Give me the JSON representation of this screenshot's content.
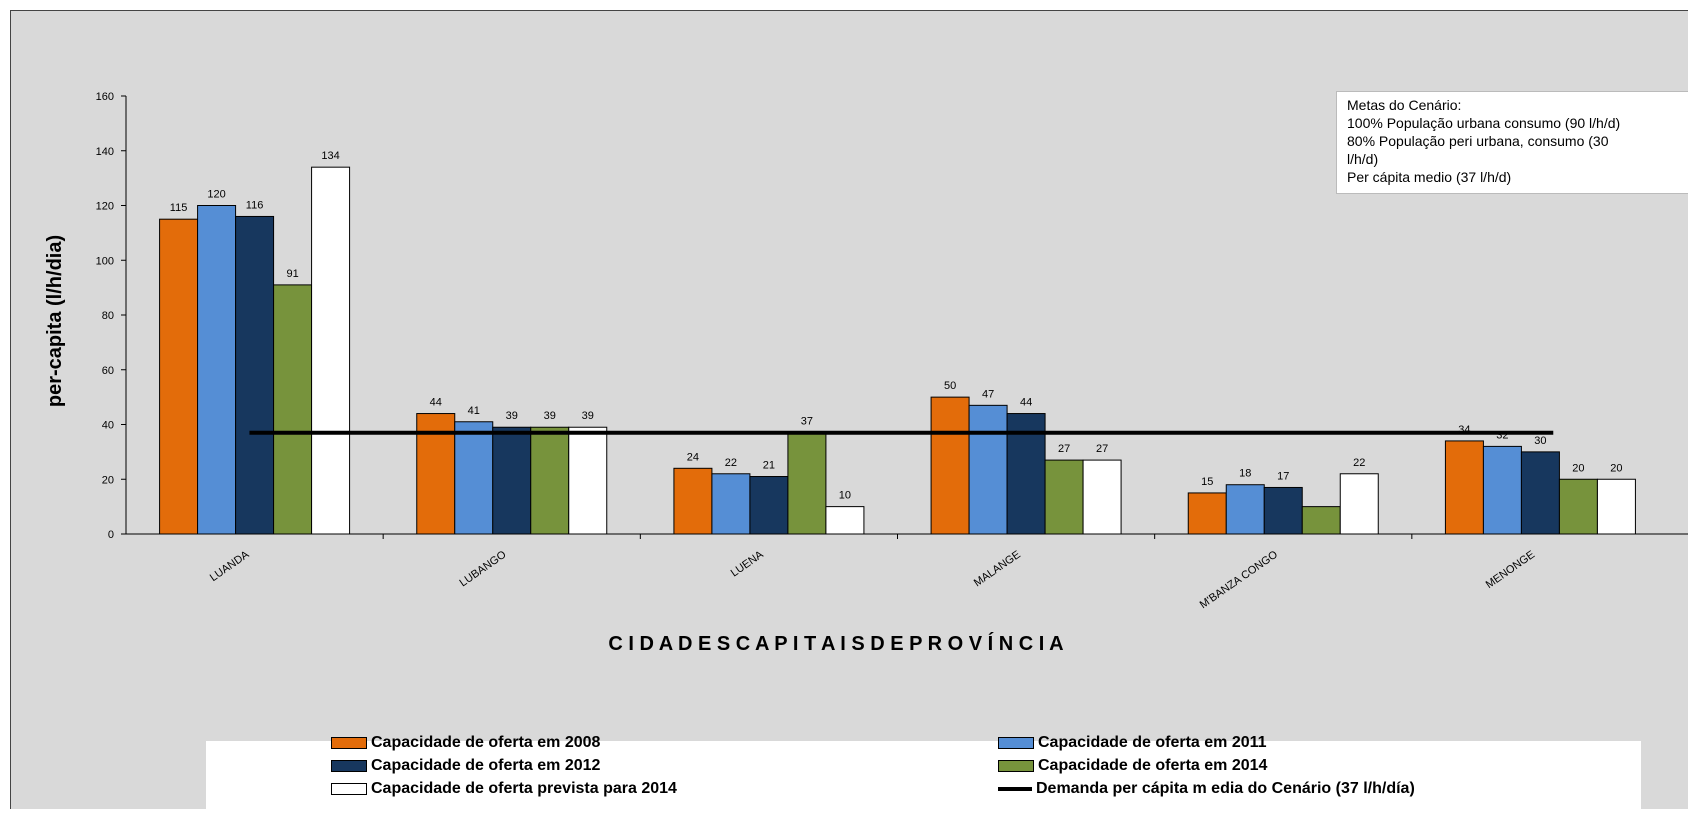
{
  "chart_data": {
    "type": "bar",
    "xlabel": "C I D A D E S   C A P I T A I S  D E  P R O V Í N C I A",
    "ylabel": "per-capita (l/h/dia)",
    "ylim": [
      0,
      160
    ],
    "yticks": [
      0,
      20,
      40,
      60,
      80,
      100,
      120,
      140,
      160
    ],
    "categories": [
      "LUANDA",
      "LUBANGO",
      "LUENA",
      "MALANGE",
      "M'BANZA CONGO",
      "MENONGE"
    ],
    "series": [
      {
        "name": "Capacidade de oferta em 2008",
        "color": "#e36c0a",
        "values": [
          115,
          44,
          24,
          50,
          15,
          34
        ]
      },
      {
        "name": "Capacidade de oferta em 2011",
        "color": "#558ed5",
        "values": [
          120,
          41,
          22,
          47,
          18,
          32
        ]
      },
      {
        "name": "Capacidade de oferta em 2012",
        "color": "#17375e",
        "values": [
          116,
          39,
          21,
          44,
          17,
          30
        ]
      },
      {
        "name": "Capacidade de oferta em 2014",
        "color": "#77933c",
        "values": [
          91,
          39,
          37,
          27,
          10,
          20
        ]
      },
      {
        "name": "Capacidade de oferta prevista para 2014",
        "color": "#ffffff",
        "values": [
          134,
          39,
          10,
          27,
          22,
          20
        ]
      }
    ],
    "data_labels": [
      [
        "115",
        "120",
        "116",
        "91",
        "134"
      ],
      [
        "44",
        "41",
        "39",
        "39",
        "39"
      ],
      [
        "24",
        "22",
        "21",
        "37",
        "10"
      ],
      [
        "50",
        "47",
        "44",
        "27",
        "27"
      ],
      [
        "15",
        "18",
        "17",
        "",
        "22"
      ],
      [
        "34",
        "32",
        "30",
        "20",
        "20"
      ]
    ],
    "reference_line": {
      "name": "Demanda per cápita m edia do Cenário (37 l/h/día)",
      "value": 37,
      "color": "#000000"
    },
    "legend_position": "bottom",
    "grid": false
  },
  "notes": {
    "lines": [
      "Metas do Cenário:",
      "100%  População urbana consumo (90 l/h/d)",
      "80%  População peri urbana, consumo (30",
      "l/h/d)",
      "Per cápita medio (37 l/h/d)"
    ]
  }
}
